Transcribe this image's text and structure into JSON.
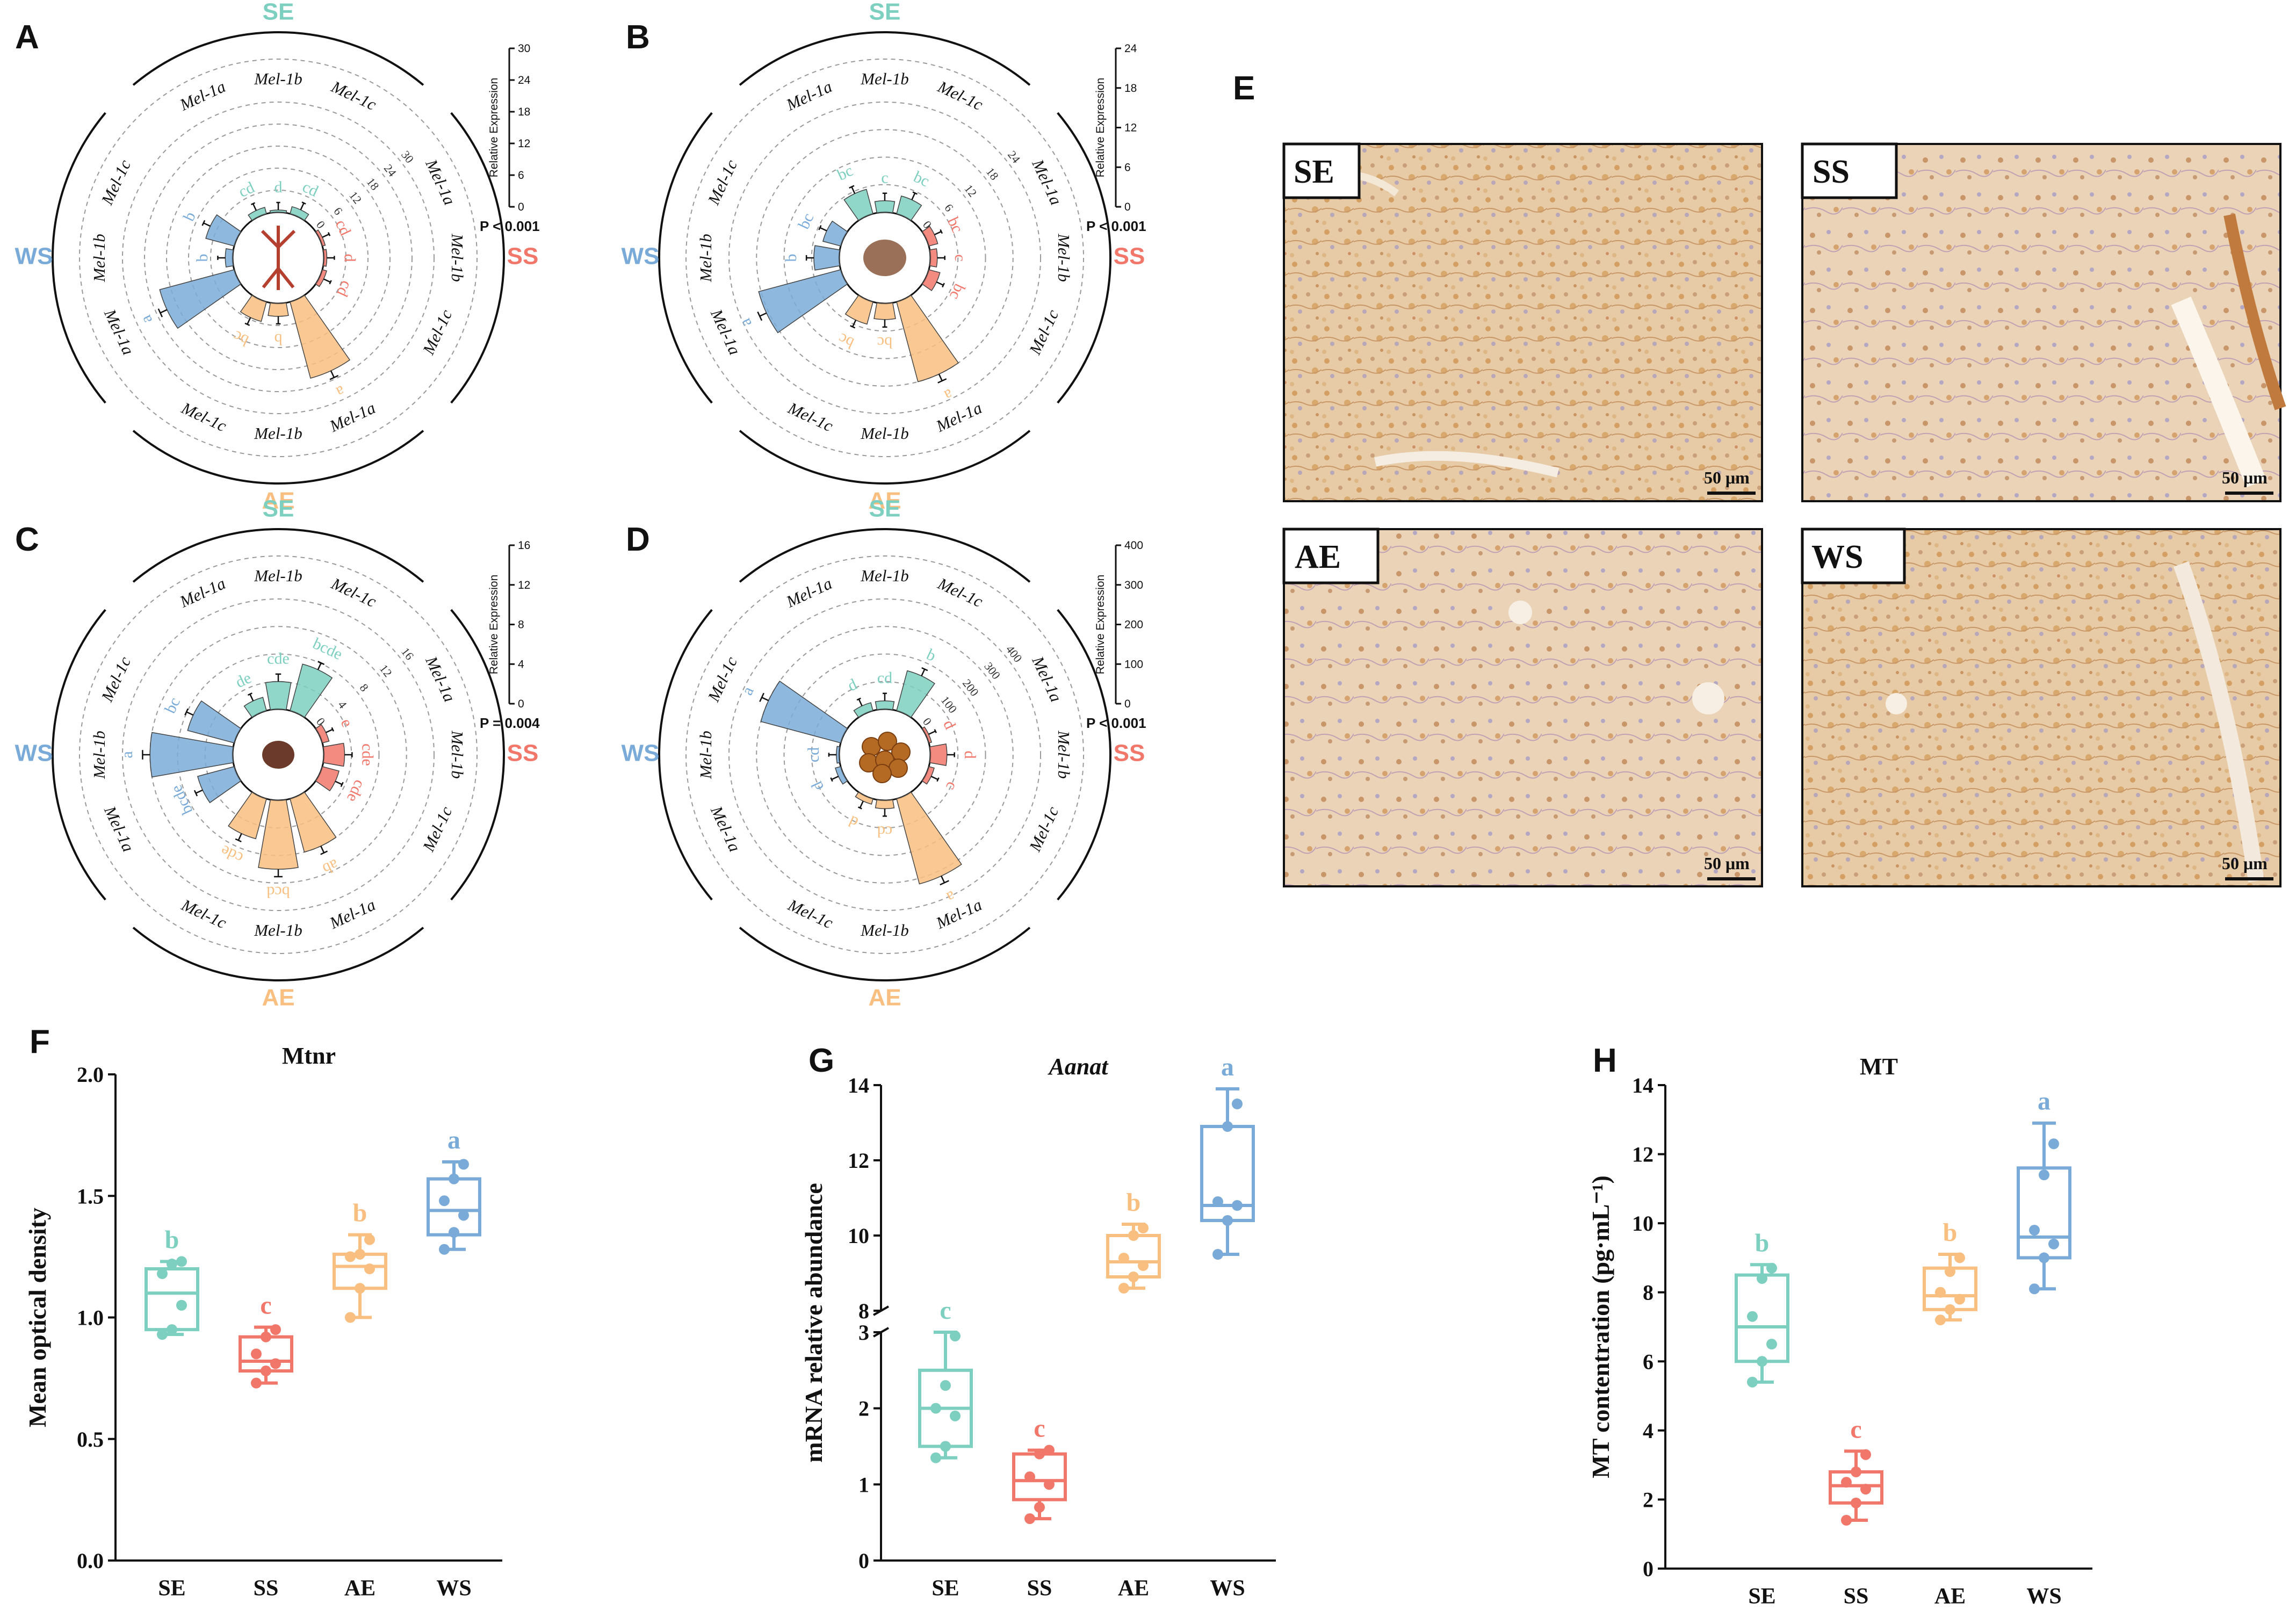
{
  "colors": {
    "SE": "#7dcfc0",
    "SS": "#f2776b",
    "AE": "#f9bf80",
    "WS": "#7aabd8",
    "axis": "#111111",
    "grid": "#999999"
  },
  "groups": [
    "SE",
    "SS",
    "AE",
    "WS"
  ],
  "chart_data": [
    {
      "panel": "A",
      "type": "radial-bar",
      "axis_title": "Relative Expression",
      "axis_ticks": [
        "0",
        "6",
        "12",
        "18",
        "24",
        "30"
      ],
      "p_value": "P < 0.001",
      "genes": [
        "Mel-1a",
        "Mel-1b",
        "Mel-1c"
      ],
      "series": [
        {
          "name": "SE",
          "values": [
            1.8,
            0.6,
            2.0
          ],
          "letters": [
            "cd",
            "d",
            "cd"
          ]
        },
        {
          "name": "SS",
          "values": [
            0.8,
            0.8,
            1.2
          ],
          "letters": [
            "cd",
            "d",
            "cd"
          ]
        },
        {
          "name": "AE",
          "values": [
            21.5,
            3.5,
            5.5
          ],
          "letters": [
            "a",
            "b",
            "bc"
          ]
        },
        {
          "name": "WS",
          "values": [
            21.0,
            2.0,
            8.0
          ],
          "letters": [
            "a",
            "b",
            "b"
          ]
        }
      ]
    },
    {
      "panel": "B",
      "type": "radial-bar",
      "axis_title": "Relative Expression",
      "axis_ticks": [
        "0",
        "6",
        "12",
        "18",
        "24"
      ],
      "p_value": "P < 0.001",
      "genes": [
        "Mel-1a",
        "Mel-1b",
        "Mel-1c"
      ],
      "series": [
        {
          "name": "SE",
          "values": [
            5.5,
            2.5,
            4.0
          ],
          "letters": [
            "bc",
            "c",
            "bc"
          ]
        },
        {
          "name": "SS",
          "values": [
            2.0,
            1.5,
            2.5
          ],
          "letters": [
            "bc",
            "c",
            "bc"
          ]
        },
        {
          "name": "AE",
          "values": [
            18.0,
            3.5,
            5.0
          ],
          "letters": [
            "a",
            "bc",
            "bc"
          ]
        },
        {
          "name": "WS",
          "values": [
            18.5,
            5.5,
            4.0
          ],
          "letters": [
            "a",
            "b",
            "bc"
          ]
        }
      ]
    },
    {
      "panel": "C",
      "type": "radial-bar",
      "axis_title": "Relative Expression",
      "axis_ticks": [
        "0",
        "4",
        "8",
        "12",
        "16"
      ],
      "p_value": "P = 0.004",
      "genes": [
        "Mel-1a",
        "Mel-1b",
        "Mel-1c"
      ],
      "series": [
        {
          "name": "SE",
          "values": [
            2.0,
            4.0,
            7.0
          ],
          "letters": [
            "de",
            "cde",
            "bcde"
          ]
        },
        {
          "name": "SS",
          "values": [
            1.0,
            3.0,
            2.5
          ],
          "letters": [
            "e",
            "cde",
            "cde"
          ]
        },
        {
          "name": "AE",
          "values": [
            8.0,
            10.0,
            6.0
          ],
          "letters": [
            "ab",
            "bcd",
            "cde"
          ]
        },
        {
          "name": "WS",
          "values": [
            5.5,
            12.0,
            7.0
          ],
          "letters": [
            "bcde",
            "a",
            "bc"
          ]
        }
      ]
    },
    {
      "panel": "D",
      "type": "radial-bar",
      "axis_title": "Relative Expression",
      "axis_ticks": [
        "0",
        "100",
        "200",
        "300",
        "400"
      ],
      "p_value": "P < 0.001",
      "genes": [
        "Mel-1a",
        "Mel-1b",
        "Mel-1c"
      ],
      "series": [
        {
          "name": "SE",
          "values": [
            30,
            30,
            150
          ],
          "letters": [
            "d",
            "cd",
            "b"
          ]
        },
        {
          "name": "SS",
          "values": [
            10,
            60,
            20
          ],
          "letters": [
            "d",
            "d",
            "c"
          ]
        },
        {
          "name": "AE",
          "values": [
            320,
            30,
            20
          ],
          "letters": [
            "a",
            "cd",
            "d"
          ]
        },
        {
          "name": "WS",
          "values": [
            20,
            10,
            300
          ],
          "letters": [
            "d",
            "cd",
            "a"
          ]
        }
      ]
    },
    {
      "panel": "F",
      "type": "box",
      "title": "Mtnr",
      "ylabel": "Mean optical density",
      "categories": [
        "SE",
        "SS",
        "AE",
        "WS"
      ],
      "ylim": [
        0,
        2.0
      ],
      "yticks": [
        "0.0",
        "0.5",
        "1.0",
        "1.5",
        "2.0"
      ],
      "boxes": [
        {
          "min": 0.93,
          "q1": 0.95,
          "median": 1.1,
          "q3": 1.2,
          "max": 1.23,
          "letter": "b",
          "points": [
            0.93,
            0.95,
            1.05,
            1.18,
            1.22,
            1.23
          ]
        },
        {
          "min": 0.73,
          "q1": 0.78,
          "median": 0.82,
          "q3": 0.92,
          "max": 0.96,
          "letter": "c",
          "points": [
            0.73,
            0.78,
            0.81,
            0.85,
            0.92,
            0.95
          ]
        },
        {
          "min": 1.0,
          "q1": 1.12,
          "median": 1.21,
          "q3": 1.26,
          "max": 1.34,
          "letter": "b",
          "points": [
            1.0,
            1.12,
            1.2,
            1.25,
            1.26,
            1.32
          ]
        },
        {
          "min": 1.28,
          "q1": 1.34,
          "median": 1.44,
          "q3": 1.57,
          "max": 1.64,
          "letter": "a",
          "points": [
            1.28,
            1.35,
            1.42,
            1.48,
            1.57,
            1.63
          ]
        }
      ]
    },
    {
      "panel": "G",
      "type": "box",
      "title": "Aanat",
      "ylabel": "mRNA relative abundance",
      "categories": [
        "SE",
        "SS",
        "AE",
        "WS"
      ],
      "yticks": [
        "0",
        "1",
        "2",
        "3",
        "8",
        "10",
        "12",
        "14"
      ],
      "broken_axis": "3 to 8",
      "boxes": [
        {
          "min": 1.35,
          "q1": 1.5,
          "median": 2.0,
          "q3": 2.5,
          "max": 3.0,
          "letter": "c",
          "points": [
            1.35,
            1.5,
            1.9,
            2.0,
            2.3,
            2.95
          ]
        },
        {
          "min": 0.55,
          "q1": 0.8,
          "median": 1.05,
          "q3": 1.4,
          "max": 1.45,
          "letter": "c",
          "points": [
            0.55,
            0.7,
            1.0,
            1.1,
            1.4,
            1.45
          ]
        },
        {
          "min": 8.6,
          "q1": 8.9,
          "median": 9.3,
          "q3": 10.0,
          "max": 10.3,
          "letter": "b",
          "points": [
            8.6,
            8.9,
            9.2,
            9.4,
            10.0,
            10.2
          ]
        },
        {
          "min": 9.5,
          "q1": 10.4,
          "median": 10.8,
          "q3": 12.9,
          "max": 13.9,
          "letter": "a",
          "points": [
            9.5,
            10.4,
            10.8,
            10.9,
            12.9,
            13.5
          ]
        }
      ]
    },
    {
      "panel": "H",
      "type": "box",
      "title": "MT",
      "ylabel": "MT contentration (pg·mL⁻¹)",
      "categories": [
        "SE",
        "SS",
        "AE",
        "WS"
      ],
      "ylim": [
        0,
        14
      ],
      "yticks": [
        "0",
        "2",
        "4",
        "6",
        "8",
        "10",
        "12",
        "14"
      ],
      "boxes": [
        {
          "min": 5.4,
          "q1": 6.0,
          "median": 7.0,
          "q3": 8.5,
          "max": 8.8,
          "letter": "b",
          "points": [
            5.4,
            6.0,
            6.5,
            7.3,
            8.4,
            8.7
          ]
        },
        {
          "min": 1.4,
          "q1": 1.9,
          "median": 2.4,
          "q3": 2.8,
          "max": 3.4,
          "letter": "c",
          "points": [
            1.4,
            1.9,
            2.3,
            2.5,
            2.8,
            3.3
          ]
        },
        {
          "min": 7.2,
          "q1": 7.5,
          "median": 7.9,
          "q3": 8.7,
          "max": 9.1,
          "letter": "b",
          "points": [
            7.2,
            7.5,
            7.8,
            8.0,
            8.6,
            9.0
          ]
        },
        {
          "min": 8.1,
          "q1": 9.0,
          "median": 9.6,
          "q3": 11.6,
          "max": 12.9,
          "letter": "a",
          "points": [
            8.1,
            9.0,
            9.4,
            9.8,
            11.4,
            12.3
          ]
        }
      ]
    }
  ],
  "histology": {
    "panel": "E",
    "labels": [
      "SE",
      "SS",
      "AE",
      "WS"
    ],
    "scale_bar": "50 μm"
  },
  "panel_letters": {
    "A": "A",
    "B": "B",
    "C": "C",
    "D": "D",
    "E": "E",
    "F": "F",
    "G": "G",
    "H": "H"
  }
}
